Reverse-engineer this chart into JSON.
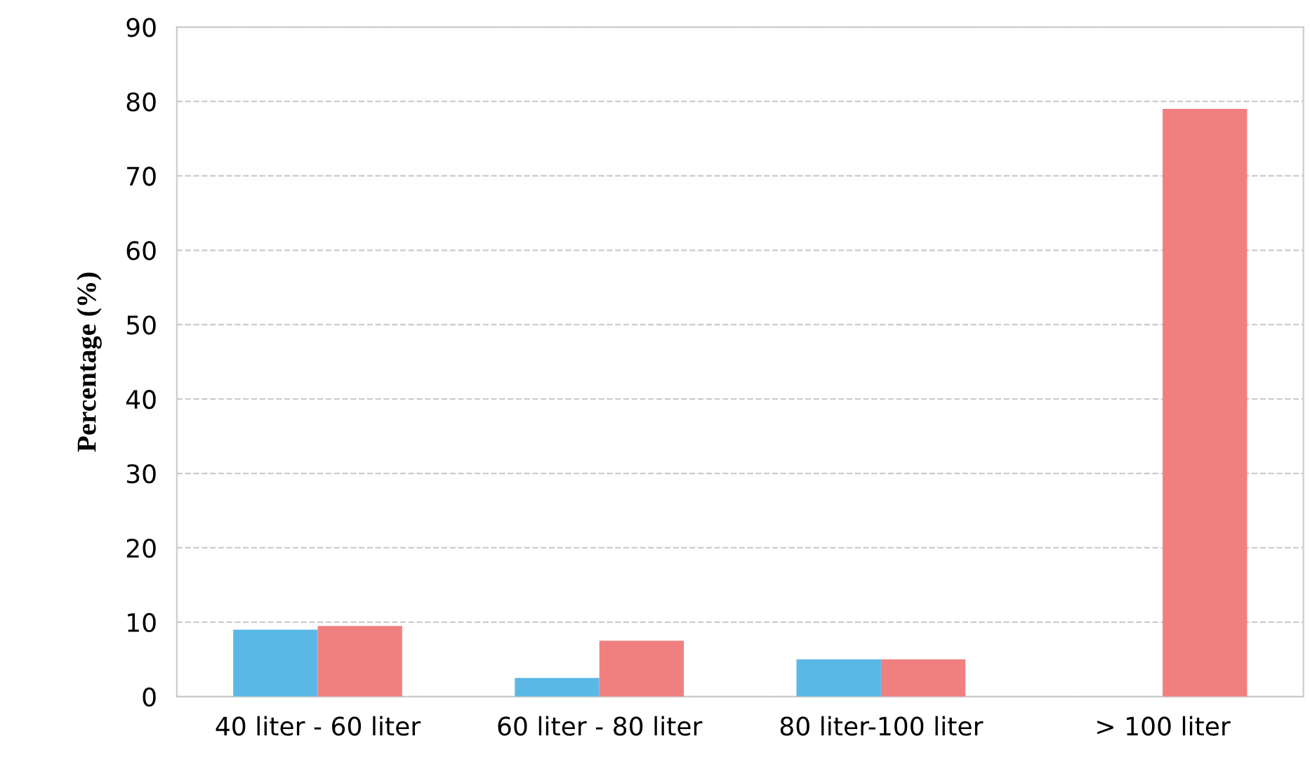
{
  "chart_data": {
    "type": "bar",
    "ylabel": "Percentage (%)",
    "categories": [
      "40 liter - 60 liter",
      "60 liter - 80 liter",
      "80 liter-100 liter",
      "> 100 liter"
    ],
    "series": [
      {
        "color": "#5bb8e6",
        "values": [
          9,
          2.5,
          5,
          0
        ]
      },
      {
        "color": "#f08080",
        "values": [
          9.5,
          7.5,
          5,
          79
        ]
      }
    ],
    "ylim": [
      0,
      90
    ],
    "yticks": [
      0,
      10,
      20,
      30,
      40,
      50,
      60,
      70,
      80,
      90
    ],
    "grid": "y",
    "legend": false
  }
}
